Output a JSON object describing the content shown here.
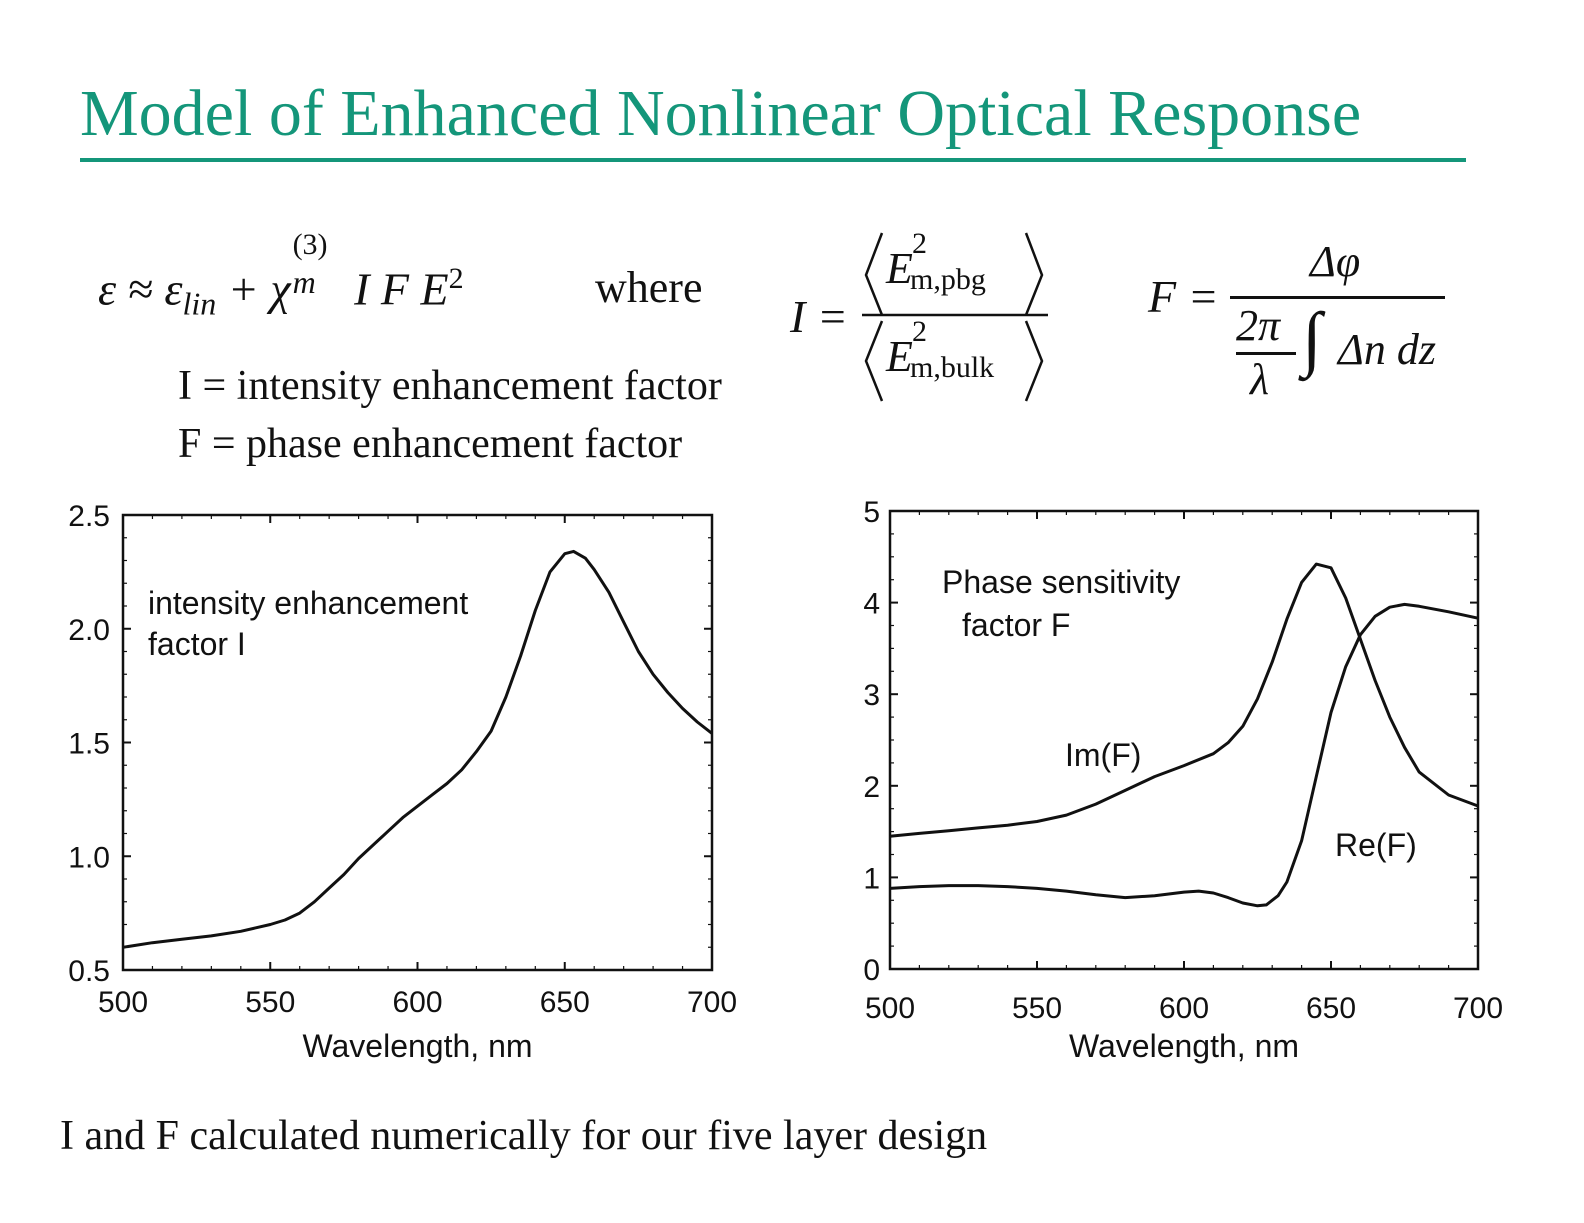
{
  "title": "Model of Enhanced Nonlinear Optical Response",
  "equations": {
    "epsilon": {
      "lhs": "ε ≈ ε",
      "lin_sub": "lin",
      "plus_chi": " + χ",
      "chi_sup": "(3)",
      "chi_sub": "m",
      "tail": " I F E",
      "tail_sup": "2"
    },
    "where": "where",
    "I_eq": {
      "lhs": "I =",
      "num_E": "E",
      "num_sup": "2",
      "num_sub": "m,pbg",
      "den_E": "E",
      "den_sup": "2",
      "den_sub": "m,bulk"
    },
    "F_eq": {
      "lhs": "F =",
      "num": "Δφ",
      "frac_num": "2π",
      "frac_den": "λ",
      "integral": "∫",
      "integrand": "Δn dz"
    }
  },
  "definitions": {
    "I_def": "I = intensity enhancement factor",
    "F_def": "F = phase enhancement factor"
  },
  "footer": "I and F calculated numerically for our five layer design",
  "chart_data": [
    {
      "type": "line",
      "xlabel": "Wavelength, nm",
      "ylabel": "",
      "xlim": [
        500,
        700
      ],
      "ylim": [
        0.5,
        2.5
      ],
      "xticks": [
        "500",
        "550",
        "600",
        "650",
        "700"
      ],
      "yticks": [
        "0.5",
        "1.0",
        "1.5",
        "2.0",
        "2.5"
      ],
      "annotation": [
        "intensity enhancement",
        "factor I"
      ],
      "series": [
        {
          "name": "",
          "x": [
            500,
            510,
            520,
            530,
            540,
            550,
            555,
            560,
            565,
            570,
            575,
            580,
            585,
            590,
            595,
            600,
            605,
            610,
            615,
            620,
            625,
            630,
            635,
            640,
            645,
            650,
            653,
            657,
            660,
            665,
            670,
            675,
            680,
            685,
            690,
            695,
            700
          ],
          "y": [
            0.6,
            0.62,
            0.635,
            0.65,
            0.67,
            0.7,
            0.72,
            0.75,
            0.8,
            0.86,
            0.92,
            0.99,
            1.05,
            1.11,
            1.17,
            1.22,
            1.27,
            1.32,
            1.38,
            1.46,
            1.55,
            1.7,
            1.88,
            2.08,
            2.25,
            2.33,
            2.34,
            2.31,
            2.26,
            2.16,
            2.03,
            1.9,
            1.8,
            1.72,
            1.65,
            1.59,
            1.54
          ]
        }
      ]
    },
    {
      "type": "line",
      "xlabel": "Wavelength, nm",
      "ylabel": "",
      "xlim": [
        500,
        700
      ],
      "ylim": [
        0,
        5
      ],
      "xticks": [
        "500",
        "550",
        "600",
        "650",
        "700"
      ],
      "yticks": [
        "0",
        "1",
        "2",
        "3",
        "4",
        "5"
      ],
      "annotation": [
        "Phase sensitivity",
        "factor F"
      ],
      "series": [
        {
          "name": "Im(F)",
          "x": [
            500,
            510,
            520,
            530,
            540,
            550,
            560,
            570,
            580,
            590,
            600,
            610,
            615,
            620,
            625,
            630,
            635,
            640,
            645,
            650,
            655,
            660,
            665,
            670,
            675,
            680,
            690,
            700
          ],
          "y": [
            1.45,
            1.48,
            1.51,
            1.54,
            1.57,
            1.61,
            1.68,
            1.8,
            1.95,
            2.1,
            2.22,
            2.35,
            2.47,
            2.65,
            2.95,
            3.35,
            3.82,
            4.22,
            4.42,
            4.38,
            4.05,
            3.6,
            3.15,
            2.75,
            2.42,
            2.15,
            1.9,
            1.78
          ]
        },
        {
          "name": "Re(F)",
          "x": [
            500,
            510,
            520,
            530,
            540,
            550,
            560,
            570,
            580,
            590,
            600,
            605,
            610,
            615,
            620,
            625,
            628,
            632,
            635,
            640,
            645,
            650,
            655,
            660,
            665,
            670,
            675,
            680,
            690,
            700
          ],
          "y": [
            0.88,
            0.9,
            0.91,
            0.91,
            0.9,
            0.88,
            0.85,
            0.81,
            0.78,
            0.8,
            0.84,
            0.85,
            0.83,
            0.78,
            0.72,
            0.69,
            0.7,
            0.8,
            0.95,
            1.4,
            2.1,
            2.8,
            3.3,
            3.65,
            3.85,
            3.95,
            3.98,
            3.96,
            3.9,
            3.83
          ]
        }
      ]
    }
  ],
  "colors": {
    "title": "#14967a",
    "ink": "#111111"
  }
}
